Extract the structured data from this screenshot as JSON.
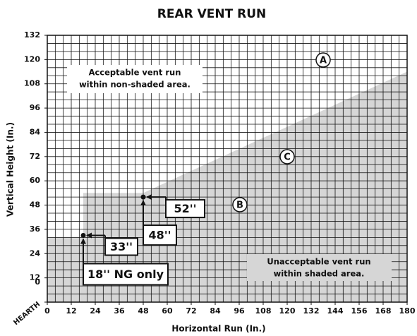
{
  "chart_data": {
    "type": "area",
    "title": "REAR VENT RUN",
    "xlabel": "Horizontal Run (In.)",
    "ylabel": "Vertical Height (In.)",
    "origin_label": "HEARTH",
    "xlim": [
      0,
      180
    ],
    "ylim": [
      0,
      132
    ],
    "xticks": [
      0,
      12,
      24,
      36,
      48,
      60,
      72,
      84,
      96,
      108,
      120,
      132,
      144,
      156,
      168,
      180
    ],
    "yticks": [
      0,
      12,
      24,
      36,
      48,
      60,
      72,
      84,
      96,
      108,
      120,
      132
    ],
    "grid": true,
    "grid_step": 4,
    "boundary": {
      "color": "#d6d6d6",
      "x": [
        0,
        18,
        18,
        48,
        180
      ],
      "y": [
        32,
        32,
        54,
        54,
        114
      ]
    },
    "points": {
      "x": [
        18,
        48
      ],
      "y": [
        33,
        52
      ],
      "x_labels": [
        "18'' NG only",
        "48''"
      ],
      "y_labels": [
        "33''",
        "52''"
      ]
    },
    "zones": [
      "A",
      "B",
      "C"
    ],
    "notes": [
      [
        "Acceptable vent run",
        "within non-shaded area."
      ],
      [
        "Unacceptable vent run",
        "within shaded area."
      ]
    ]
  }
}
